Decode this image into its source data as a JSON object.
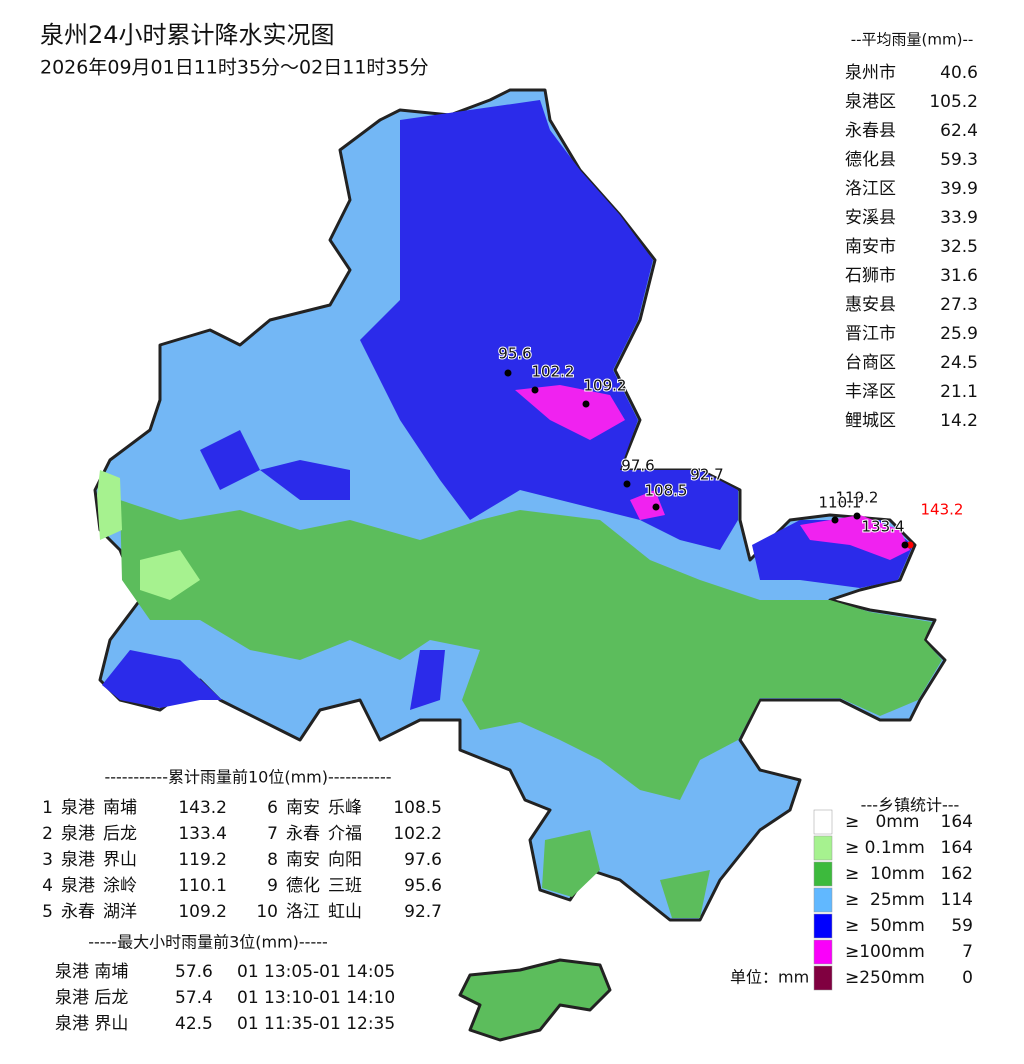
{
  "title": "泉州24小时累计降水实况图",
  "subtitle": "2026年09月01日11时35分～02日11时35分",
  "average": {
    "header": "--平均雨量(mm)--",
    "rows": [
      {
        "name": "泉州市",
        "value": 40.6
      },
      {
        "name": "泉港区",
        "value": 105.2
      },
      {
        "name": "永春县",
        "value": 62.4
      },
      {
        "name": "德化县",
        "value": 59.3
      },
      {
        "name": "洛江区",
        "value": 39.9
      },
      {
        "name": "安溪县",
        "value": 33.9
      },
      {
        "name": "南安市",
        "value": 32.5
      },
      {
        "name": "石狮市",
        "value": 31.6
      },
      {
        "name": "惠安县",
        "value": 27.3
      },
      {
        "name": "晋江市",
        "value": 25.9
      },
      {
        "name": "台商区",
        "value": 24.5
      },
      {
        "name": "丰泽区",
        "value": 21.1
      },
      {
        "name": "鲤城区",
        "value": 14.2
      }
    ]
  },
  "top10": {
    "header": "-----------累计雨量前10位(mm)-----------",
    "rows": [
      {
        "rank": 1,
        "county": "泉港",
        "town": "南埔",
        "value": 143.2
      },
      {
        "rank": 2,
        "county": "泉港",
        "town": "后龙",
        "value": 133.4
      },
      {
        "rank": 3,
        "county": "泉港",
        "town": "界山",
        "value": 119.2
      },
      {
        "rank": 4,
        "county": "泉港",
        "town": "涂岭",
        "value": 110.1
      },
      {
        "rank": 5,
        "county": "永春",
        "town": "湖洋",
        "value": 109.2
      },
      {
        "rank": 6,
        "county": "南安",
        "town": "乐峰",
        "value": 108.5
      },
      {
        "rank": 7,
        "county": "永春",
        "town": "介福",
        "value": 102.2
      },
      {
        "rank": 8,
        "county": "南安",
        "town": "向阳",
        "value": 97.6
      },
      {
        "rank": 9,
        "county": "德化",
        "town": "三班",
        "value": 95.6
      },
      {
        "rank": 10,
        "county": "洛江",
        "town": "虹山",
        "value": 92.7
      }
    ]
  },
  "max_hourly": {
    "header": "-----最大小时雨量前3位(mm)-----",
    "rows": [
      {
        "station": "泉港 南埔",
        "value": 57.6,
        "time": "01 13:05-01 14:05"
      },
      {
        "station": "泉港 后龙",
        "value": 57.4,
        "time": "01 13:10-01 14:10"
      },
      {
        "station": "泉港 界山",
        "value": 42.5,
        "time": "01 11:35-01 12:35"
      }
    ]
  },
  "legend": {
    "header": "---乡镇统计---",
    "items": [
      {
        "label": "≥   0mm",
        "count": 164,
        "color": "#ffffff"
      },
      {
        "label": "≥ 0.1mm",
        "count": 164,
        "color": "#a6f28f"
      },
      {
        "label": "≥  10mm",
        "count": 162,
        "color": "#3dba3d"
      },
      {
        "label": "≥  25mm",
        "count": 114,
        "color": "#61b8ff"
      },
      {
        "label": "≥  50mm",
        "count": 59,
        "color": "#0000fe"
      },
      {
        "label": "≥100mm",
        "count": 7,
        "color": "#fa00fa"
      },
      {
        "label": "≥250mm",
        "count": 0,
        "color": "#800040"
      }
    ]
  },
  "unit": "单位：mm"
}
